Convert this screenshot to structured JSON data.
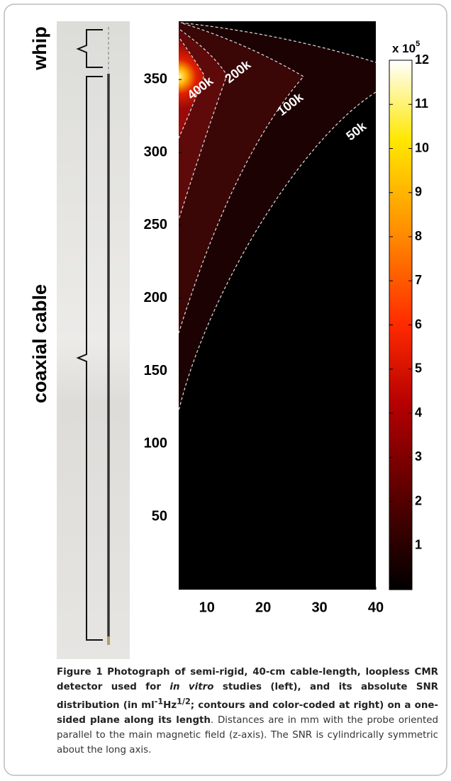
{
  "photo": {
    "labels": [
      "whip",
      "coaxial cable"
    ]
  },
  "chart_data": {
    "type": "contour",
    "xlim": [
      5,
      40
    ],
    "xticks": [
      10,
      20,
      30,
      40
    ],
    "ylim": [
      0,
      390
    ],
    "yticks": [
      50,
      100,
      150,
      200,
      250,
      300,
      350
    ],
    "contour_labels": [
      "400k",
      "200k",
      "100k",
      "50k"
    ],
    "colorbar": {
      "lim": [
        0,
        12
      ],
      "ticks": [
        1,
        2,
        3,
        4,
        5,
        6,
        7,
        8,
        9,
        10,
        11,
        12
      ],
      "label": "x 10",
      "label_exponent": "5"
    }
  },
  "caption": {
    "label": "Figure 1",
    "title": [
      "Photograph of semi-rigid, 40-cm cable-length, loopless CMR detector used for ",
      "in vitro",
      " studies (left), and its absolute SNR distribution (in ml",
      "-1",
      "Hz",
      "1/2",
      "; contours and color-coded at right) on a one-sided plane along its length"
    ],
    "body": ". Distances are in mm with the probe oriented parallel to the main magnetic field (z-axis). The SNR is cylindrically symmetric about the long axis."
  }
}
